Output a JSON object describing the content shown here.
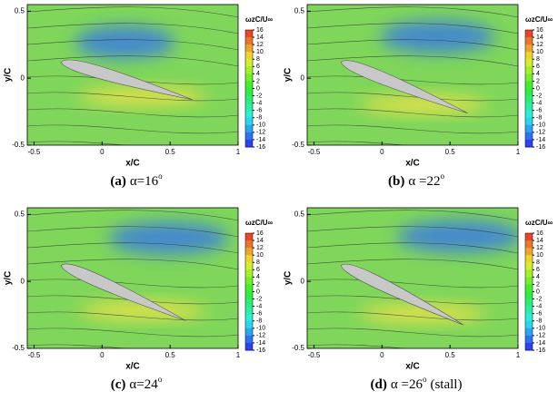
{
  "chart_data": [
    {
      "type": "contour",
      "xlabel": "x/C",
      "ylabel": "y/C",
      "xlim": [
        -0.55,
        1
      ],
      "ylim": [
        -0.5,
        0.55
      ],
      "xticks": [
        -0.5,
        0,
        0.5,
        1
      ],
      "yticks": [
        -0.5,
        0,
        0.5
      ],
      "colorbar_title": "ωzC/U∞",
      "colorbar_ticks": [
        16,
        14,
        12,
        10,
        8,
        6,
        4,
        2,
        0,
        -2,
        -4,
        -6,
        -8,
        -10,
        -12,
        -14,
        -16
      ],
      "caption": {
        "label": "(a)",
        "prefix": "α=",
        "alpha": 16,
        "degree": "o"
      }
    },
    {
      "type": "contour",
      "xlabel": "x/C",
      "ylabel": "y/C",
      "xlim": [
        -0.55,
        1
      ],
      "ylim": [
        -0.5,
        0.55
      ],
      "xticks": [
        -0.5,
        0,
        0.5,
        1
      ],
      "yticks": [
        -0.5,
        0,
        0.5
      ],
      "colorbar_title": "ωzC/U∞",
      "colorbar_ticks": [
        16,
        14,
        12,
        10,
        8,
        6,
        4,
        2,
        0,
        -2,
        -4,
        -6,
        -8,
        -10,
        -12,
        -14,
        -16
      ],
      "caption": {
        "label": "(b)",
        "prefix": "α =",
        "alpha": 22,
        "degree": "o"
      }
    },
    {
      "type": "contour",
      "xlabel": "x/C",
      "ylabel": "y/C",
      "xlim": [
        -0.55,
        1
      ],
      "ylim": [
        -0.5,
        0.55
      ],
      "xticks": [
        -0.5,
        0,
        0.5,
        1
      ],
      "yticks": [
        -0.5,
        0,
        0.5
      ],
      "colorbar_title": "ωzC/U∞",
      "colorbar_ticks": [
        16,
        14,
        12,
        10,
        8,
        6,
        4,
        2,
        0,
        -2,
        -4,
        -6,
        -8,
        -10,
        -12,
        -14,
        -16
      ],
      "caption": {
        "label": "(c)",
        "prefix": "α=",
        "alpha": 24,
        "degree": "o"
      }
    },
    {
      "type": "contour",
      "xlabel": "x/C",
      "ylabel": "y/C",
      "xlim": [
        -0.55,
        1
      ],
      "ylim": [
        -0.5,
        0.55
      ],
      "xticks": [
        -0.5,
        0,
        0.5,
        1
      ],
      "yticks": [
        -0.5,
        0,
        0.5
      ],
      "colorbar_title": "ωzC/U∞",
      "colorbar_ticks": [
        16,
        14,
        12,
        10,
        8,
        6,
        4,
        2,
        0,
        -2,
        -4,
        -6,
        -8,
        -10,
        -12,
        -14,
        -16
      ],
      "caption": {
        "label": "(d)",
        "prefix": "α =",
        "alpha": 26,
        "degree": "o",
        "suffix": "(stall)"
      }
    }
  ]
}
